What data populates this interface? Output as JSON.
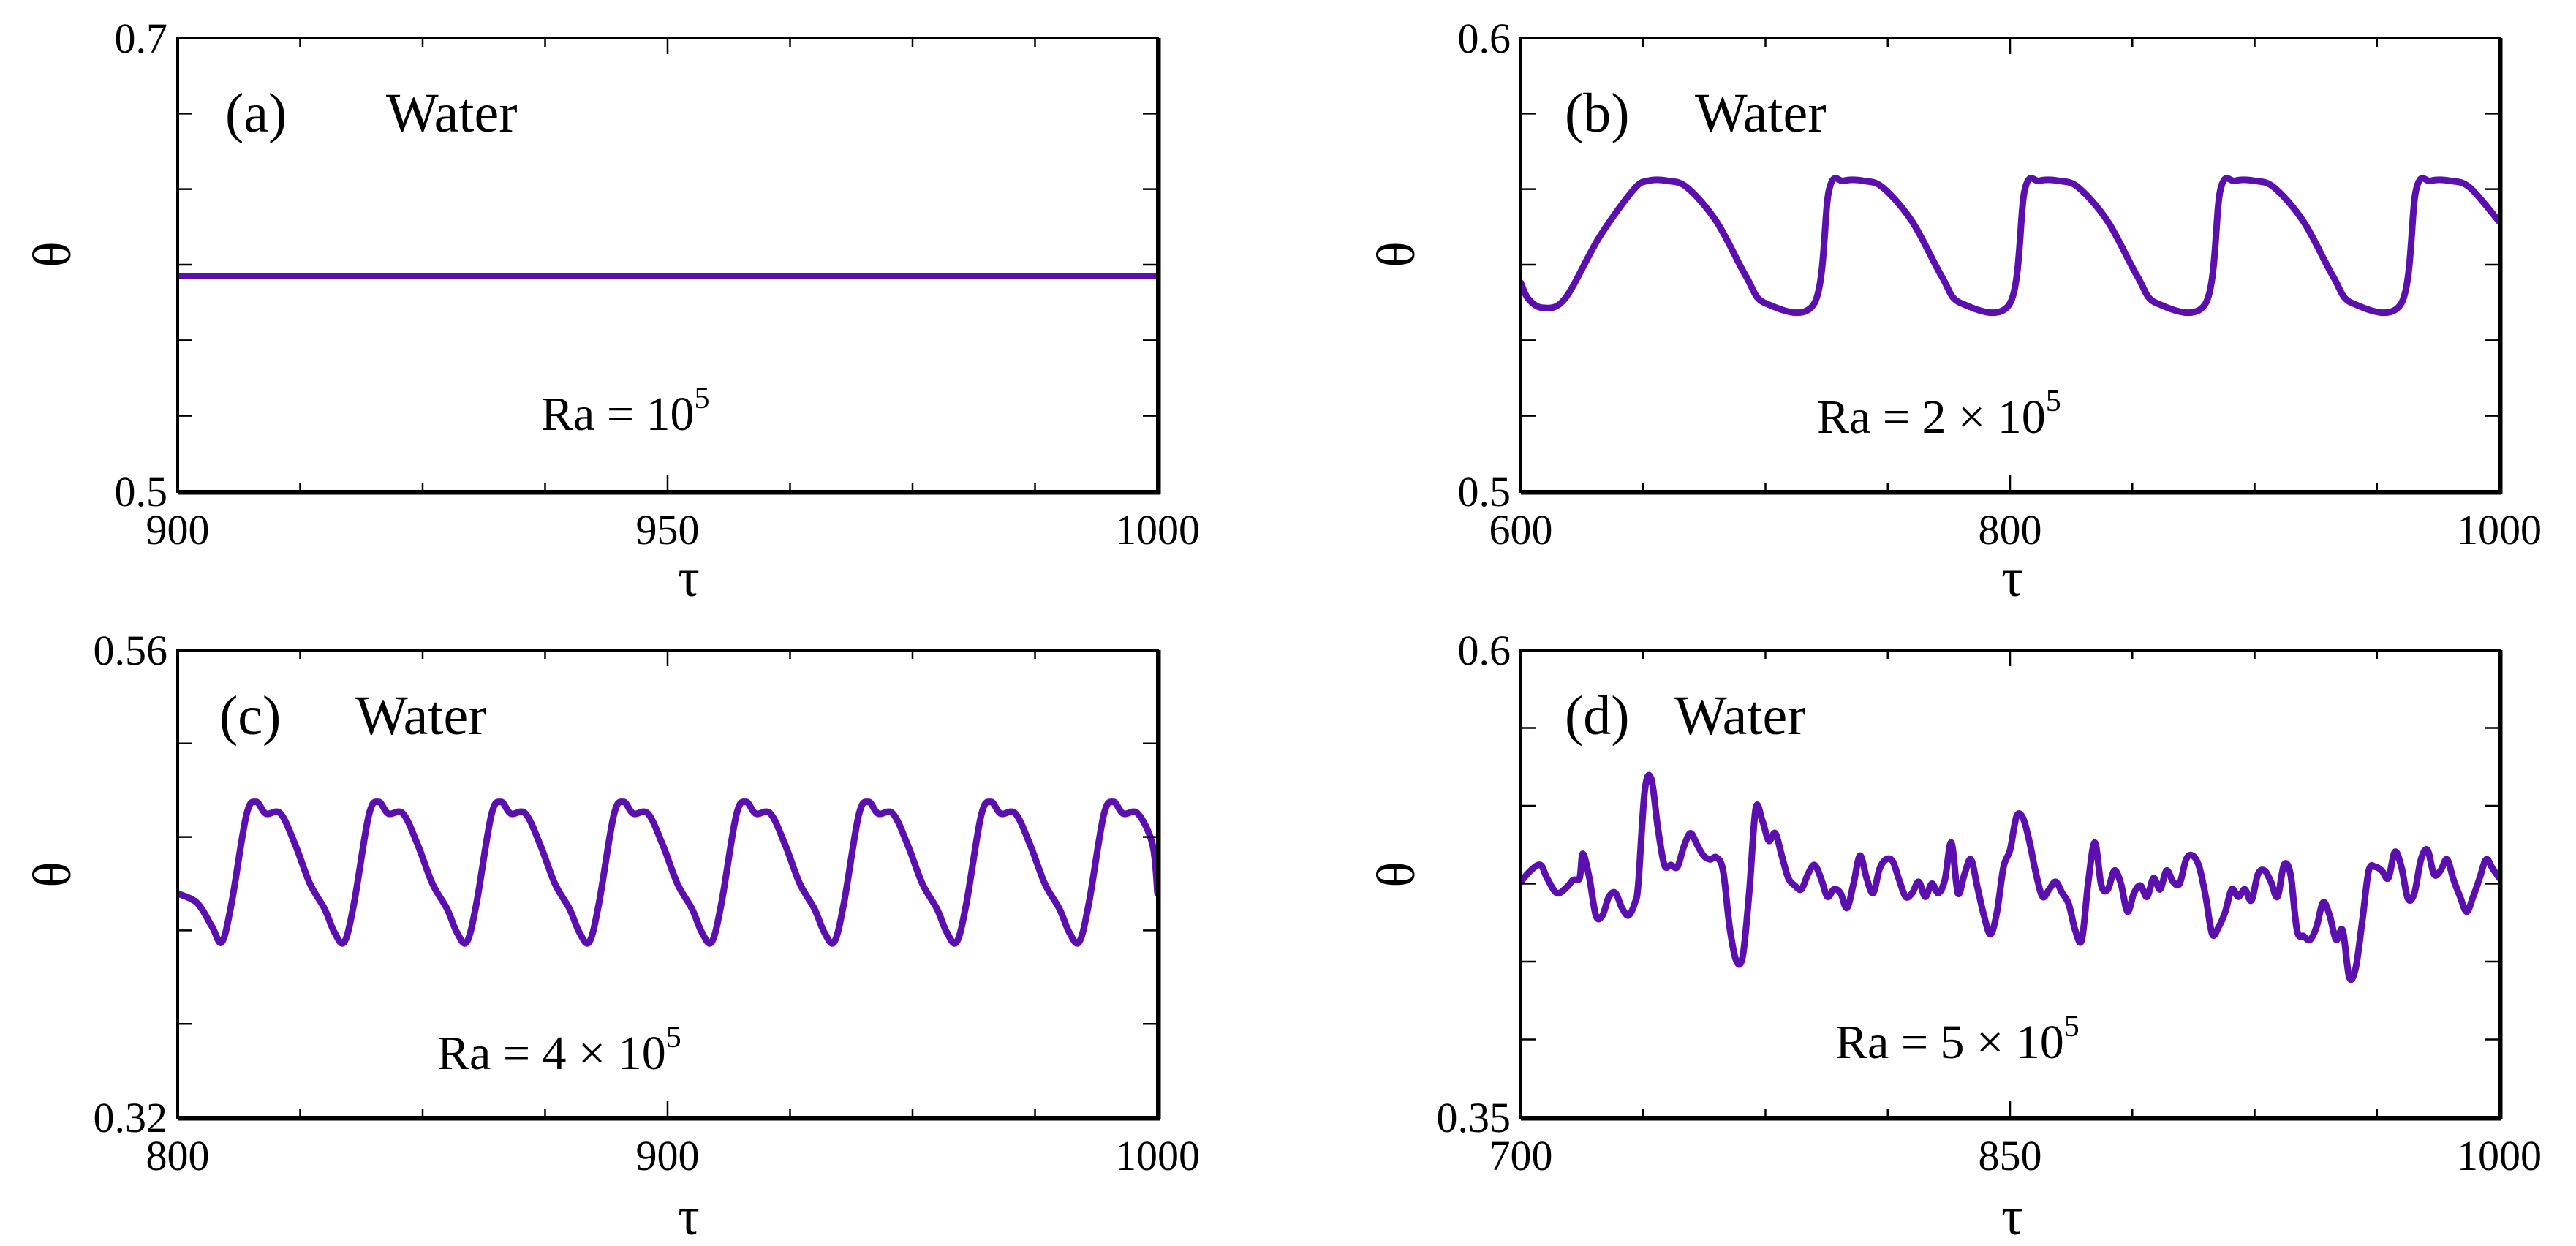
{
  "colors": {
    "series": "#5b0fae",
    "axes": "#000000"
  },
  "chart_data": [
    {
      "type": "line",
      "panel": "(a)",
      "fluid": "Water",
      "ra_base": "Ra = 10",
      "ra_exp": "5",
      "xlabel": "τ",
      "ylabel": "θ",
      "xlim": [
        900,
        1000
      ],
      "ylim": [
        0.5,
        0.7
      ],
      "xticks": [
        {
          "v": 900,
          "label": "900"
        },
        {
          "v": 950,
          "label": "950"
        },
        {
          "v": 1000,
          "label": "1000"
        }
      ],
      "yticks": [
        {
          "v": 0.5,
          "label": "0.5"
        },
        {
          "v": 0.7,
          "label": "0.7"
        }
      ],
      "ytick_count": 6,
      "series": {
        "name": "Water",
        "generator": "constant",
        "value": 0.595,
        "x": [
          900,
          1000
        ],
        "y": [
          0.595,
          0.595
        ]
      }
    },
    {
      "type": "line",
      "panel": "(b)",
      "fluid": "Water",
      "ra_base": "Ra = 2 × 10",
      "ra_exp": "5",
      "xlabel": "τ",
      "ylabel": "θ",
      "xlim": [
        600,
        1000
      ],
      "ylim": [
        0.5,
        0.6
      ],
      "xticks": [
        {
          "v": 600,
          "label": "600"
        },
        {
          "v": 800,
          "label": "800"
        },
        {
          "v": 1000,
          "label": "1000"
        }
      ],
      "yticks": [
        {
          "v": 0.5,
          "label": "0.5"
        },
        {
          "v": 0.6,
          "label": "0.6"
        }
      ],
      "ytick_count": 6,
      "series": {
        "name": "Water",
        "generator": "periodic",
        "period": 80,
        "x": [
          600,
          603,
          609,
          618,
          632,
          646,
          652,
          660,
          668,
          680,
          692,
          700,
          720
        ],
        "y": [
          0.546,
          0.5425,
          0.5405,
          0.5425,
          0.556,
          0.5665,
          0.5685,
          0.5685,
          0.567,
          0.5595,
          0.5475,
          0.5415,
          0.5415
        ]
      }
    },
    {
      "type": "line",
      "panel": "(c)",
      "fluid": "Water",
      "ra_base": "Ra = 4 × 10",
      "ra_exp": "5",
      "xlabel": "τ",
      "ylabel": "θ",
      "xlim": [
        800,
        1000
      ],
      "ylim": [
        0.32,
        0.56
      ],
      "xticks": [
        {
          "v": 800,
          "label": "800"
        },
        {
          "v": 900,
          "label": "900"
        },
        {
          "v": 1000,
          "label": "1000"
        }
      ],
      "yticks": [
        {
          "v": 0.32,
          "label": "0.32"
        },
        {
          "v": 0.56,
          "label": "0.56"
        }
      ],
      "ytick_count": 5,
      "series": {
        "name": "Water",
        "generator": "periodic",
        "period": 25,
        "x": [
          800,
          804,
          807,
          809,
          811,
          814,
          816,
          818,
          821,
          824,
          827,
          830,
          832,
          834
        ],
        "y": [
          0.435,
          0.43,
          0.418,
          0.41,
          0.43,
          0.475,
          0.482,
          0.476,
          0.476,
          0.46,
          0.44,
          0.427,
          0.415,
          0.41
        ]
      }
    },
    {
      "type": "line",
      "panel": "(d)",
      "fluid": "Water",
      "ra_base": "Ra = 5 × 10",
      "ra_exp": "5",
      "xlabel": "τ",
      "ylabel": "θ",
      "xlim": [
        700,
        1000
      ],
      "ylim": [
        0.35,
        0.6
      ],
      "xticks": [
        {
          "v": 700,
          "label": "700"
        },
        {
          "v": 850,
          "label": "850"
        },
        {
          "v": 1000,
          "label": "1000"
        }
      ],
      "yticks": [
        {
          "v": 0.35,
          "label": "0.35"
        },
        {
          "v": 0.6,
          "label": "0.6"
        }
      ],
      "ytick_count": 6,
      "series": {
        "name": "Water",
        "generator": "points",
        "x": [
          700,
          703,
          706,
          708,
          711,
          714,
          716,
          718,
          719,
          721,
          723,
          725,
          727,
          729,
          731,
          733,
          735,
          736,
          738,
          740,
          742,
          744,
          746,
          748,
          750,
          752,
          754,
          756,
          758,
          760,
          762,
          764,
          766,
          768,
          770,
          772,
          774,
          776,
          778,
          780,
          782,
          784,
          786,
          788,
          790,
          792,
          794,
          796,
          798,
          800,
          802,
          804,
          806,
          808,
          810,
          812,
          814,
          816,
          818,
          820,
          822,
          824,
          826,
          828,
          830,
          832,
          834,
          836,
          838,
          840,
          842,
          844,
          846,
          848,
          850,
          852,
          854,
          856,
          858,
          860,
          862,
          864,
          866,
          868,
          870,
          872,
          874,
          876,
          878,
          880,
          882,
          884,
          886,
          888,
          890,
          892,
          894,
          896,
          898,
          900,
          902,
          904,
          906,
          908,
          910,
          912,
          914,
          916,
          918,
          920,
          922,
          924,
          926,
          928,
          930,
          932,
          934,
          936,
          938,
          940,
          942,
          944,
          946,
          948,
          950,
          952,
          954,
          956,
          958,
          960,
          962,
          964,
          966,
          968,
          970,
          972,
          974,
          976,
          978,
          980,
          982,
          984,
          986,
          988,
          990,
          992,
          994,
          996,
          998,
          1000
        ],
        "y": [
          0.476,
          0.482,
          0.485,
          0.478,
          0.47,
          0.473,
          0.477,
          0.478,
          0.491,
          0.478,
          0.458,
          0.458,
          0.468,
          0.47,
          0.462,
          0.458,
          0.465,
          0.475,
          0.525,
          0.531,
          0.505,
          0.485,
          0.485,
          0.484,
          0.495,
          0.502,
          0.496,
          0.49,
          0.488,
          0.489,
          0.482,
          0.452,
          0.434,
          0.436,
          0.47,
          0.515,
          0.509,
          0.498,
          0.502,
          0.49,
          0.478,
          0.474,
          0.472,
          0.48,
          0.485,
          0.478,
          0.468,
          0.472,
          0.47,
          0.462,
          0.475,
          0.49,
          0.478,
          0.47,
          0.483,
          0.488,
          0.487,
          0.477,
          0.468,
          0.47,
          0.476,
          0.468,
          0.475,
          0.47,
          0.477,
          0.497,
          0.47,
          0.48,
          0.488,
          0.473,
          0.458,
          0.448,
          0.46,
          0.484,
          0.493,
          0.511,
          0.51,
          0.497,
          0.48,
          0.468,
          0.472,
          0.476,
          0.47,
          0.464,
          0.45,
          0.445,
          0.476,
          0.497,
          0.474,
          0.472,
          0.482,
          0.475,
          0.46,
          0.47,
          0.474,
          0.468,
          0.478,
          0.472,
          0.482,
          0.476,
          0.475,
          0.488,
          0.49,
          0.484,
          0.468,
          0.448,
          0.452,
          0.46,
          0.472,
          0.468,
          0.472,
          0.466,
          0.48,
          0.482,
          0.476,
          0.468,
          0.485,
          0.48,
          0.45,
          0.447,
          0.445,
          0.452,
          0.465,
          0.458,
          0.445,
          0.45,
          0.425,
          0.43,
          0.455,
          0.482,
          0.484,
          0.482,
          0.478,
          0.492,
          0.484,
          0.467,
          0.47,
          0.488,
          0.493,
          0.48,
          0.482,
          0.488,
          0.477,
          0.468,
          0.46,
          0.468,
          0.478,
          0.488,
          0.483,
          0.478
        ]
      }
    }
  ]
}
